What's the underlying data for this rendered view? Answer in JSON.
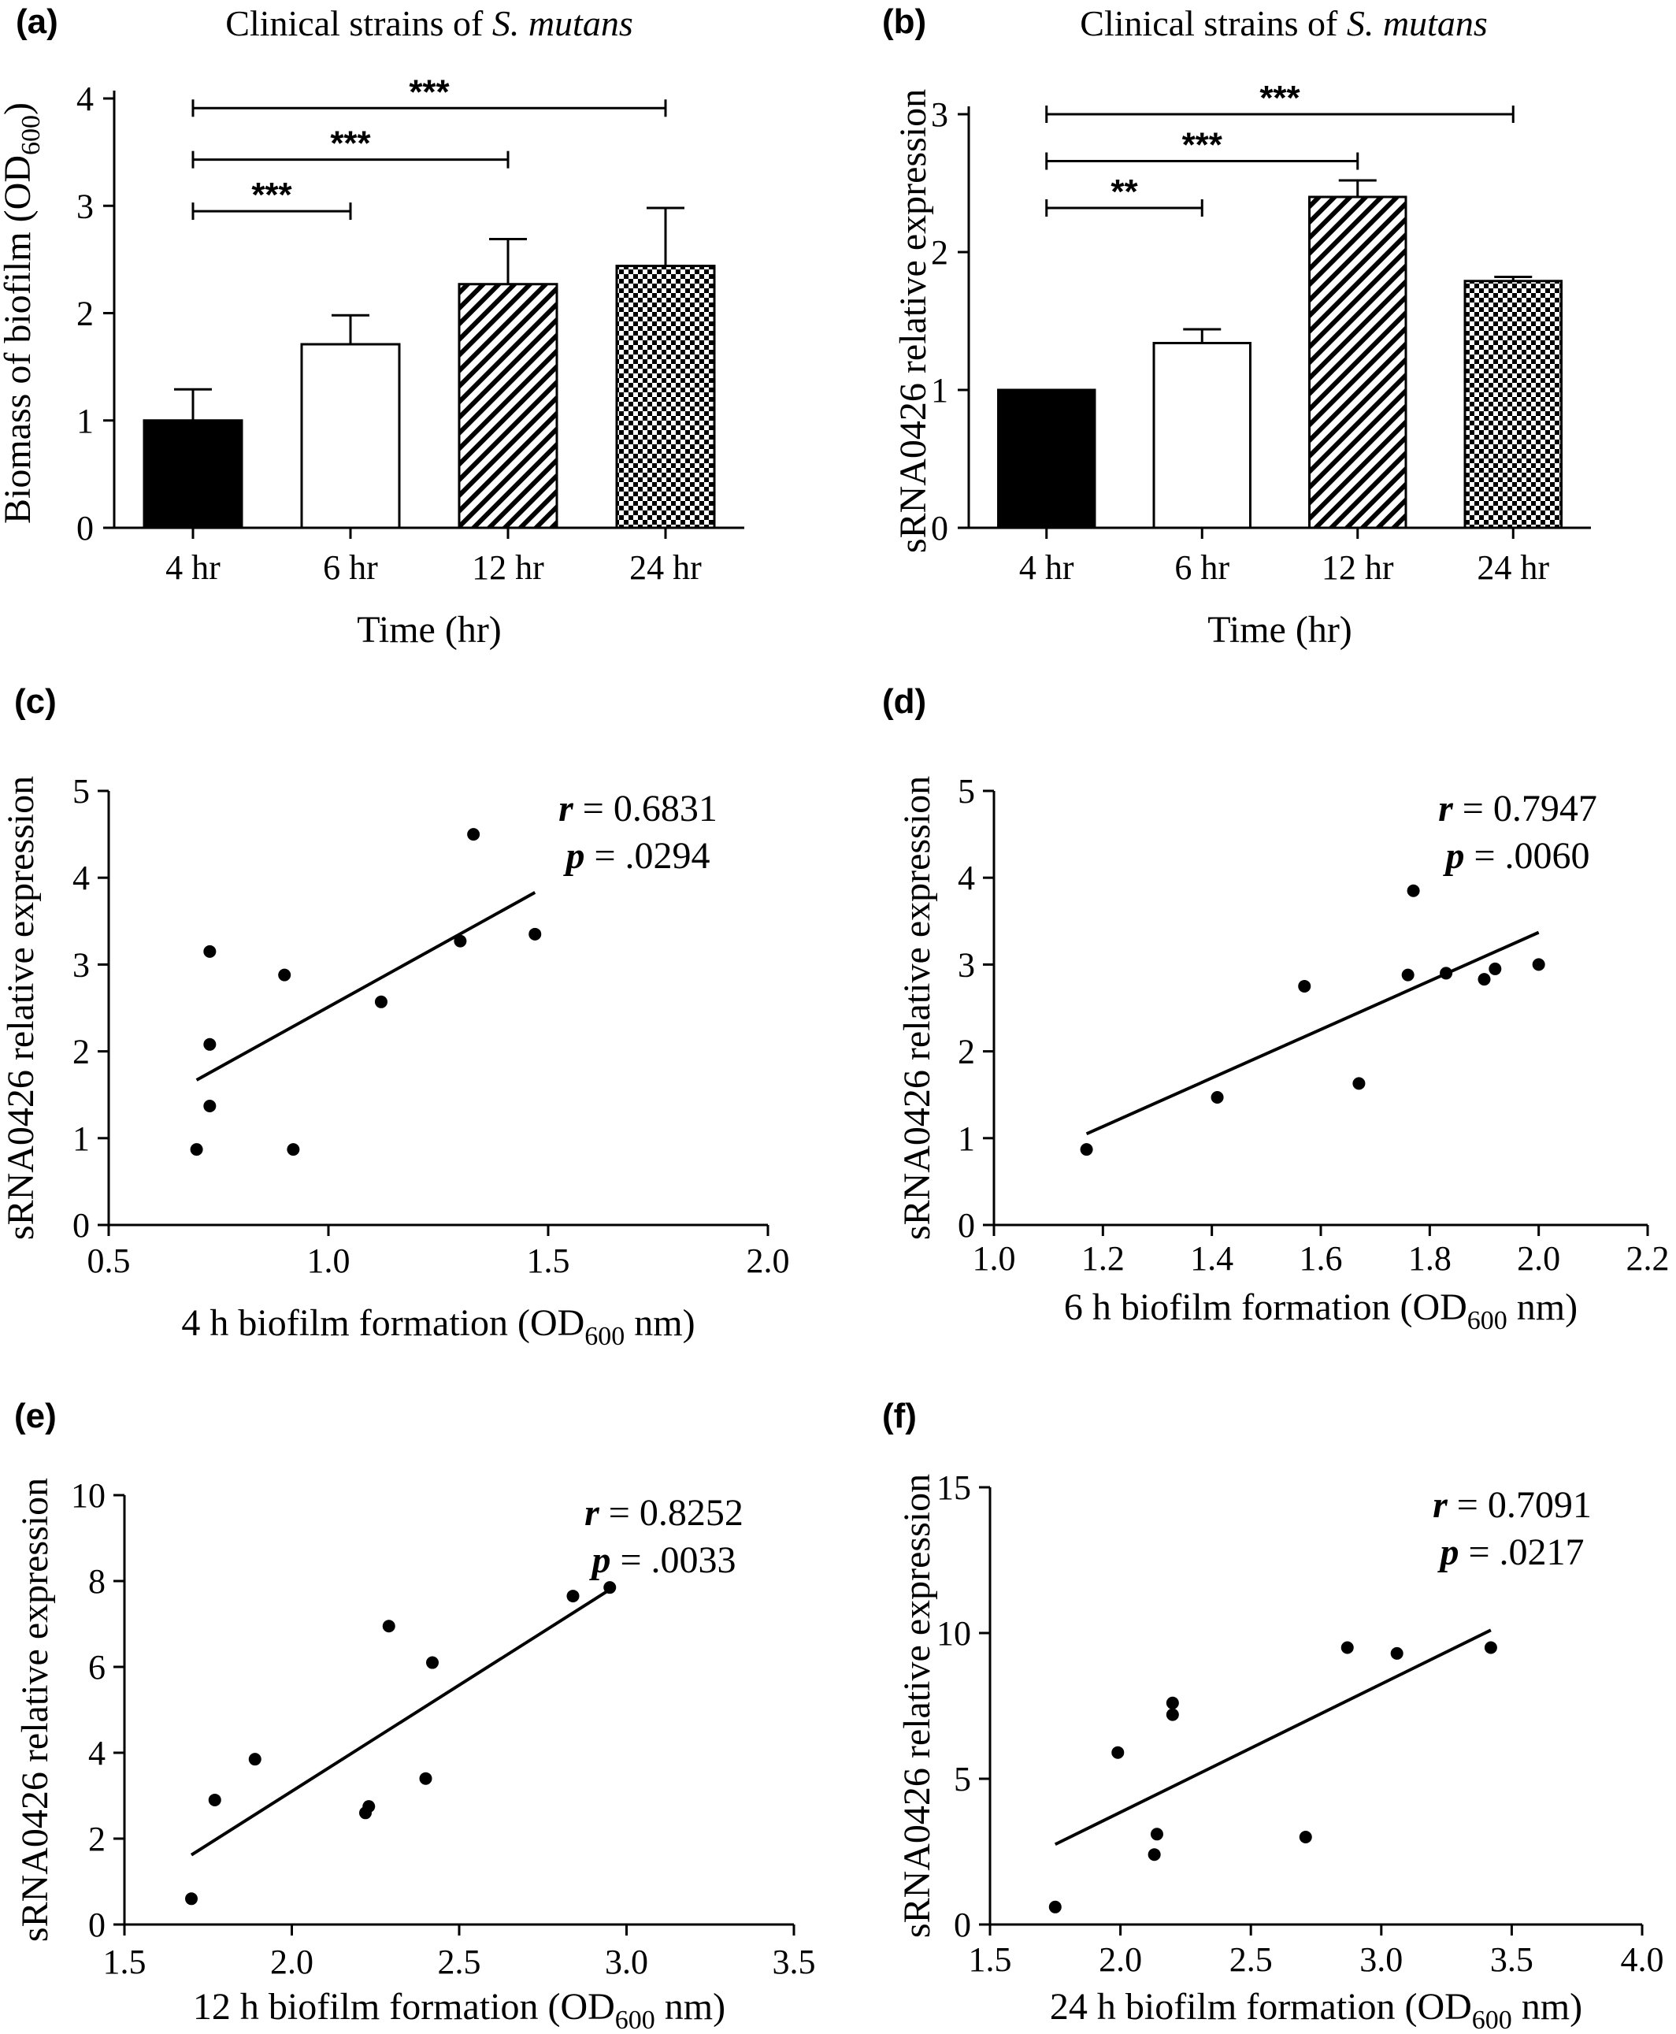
{
  "chart_data": [
    {
      "id": "a",
      "type": "bar",
      "panel_label": "(a)",
      "title": "Clinical strains of",
      "title_species": "S. mutans",
      "categories": [
        "4 hr",
        "6 hr",
        "12 hr",
        "24 hr"
      ],
      "values": [
        1.0,
        1.71,
        2.27,
        2.44
      ],
      "errors": [
        0.29,
        0.27,
        0.42,
        0.54
      ],
      "patterns": [
        "solid",
        "empty",
        "diagonal",
        "checker"
      ],
      "xlabel": "Time (hr)",
      "ylabel_main": "Biomass of biofilm (OD",
      "ylabel_sub": "600",
      "ylabel_tail": ")",
      "ylim": [
        0,
        4
      ],
      "yticks": [
        0,
        1,
        2,
        3,
        4
      ],
      "brackets": [
        {
          "from": 0,
          "to": 1,
          "y": 2.95,
          "label": "***"
        },
        {
          "from": 0,
          "to": 2,
          "y": 3.43,
          "label": "***"
        },
        {
          "from": 0,
          "to": 3,
          "y": 3.91,
          "label": "***"
        }
      ]
    },
    {
      "id": "b",
      "type": "bar",
      "panel_label": "(b)",
      "title": "Clinical strains of",
      "title_species": "S. mutans",
      "categories": [
        "4 hr",
        "6 hr",
        "12 hr",
        "24 hr"
      ],
      "values": [
        1.0,
        1.34,
        2.4,
        1.79
      ],
      "errors": [
        0.0,
        0.1,
        0.12,
        0.03
      ],
      "patterns": [
        "solid",
        "empty",
        "diagonal",
        "checker"
      ],
      "xlabel": "Time (hr)",
      "ylabel_main": "sRNA0426 relative expression",
      "ylabel_sub": "",
      "ylabel_tail": "",
      "ylim": [
        0,
        3
      ],
      "yticks": [
        0,
        1,
        2,
        3
      ],
      "brackets": [
        {
          "from": 0,
          "to": 1,
          "y": 2.32,
          "label": "**"
        },
        {
          "from": 0,
          "to": 2,
          "y": 2.66,
          "label": "***"
        },
        {
          "from": 0,
          "to": 3,
          "y": 3.0,
          "label": "***"
        }
      ]
    },
    {
      "id": "c",
      "type": "scatter",
      "panel_label": "(c)",
      "x": [
        0.7,
        0.73,
        0.73,
        0.73,
        0.9,
        0.92,
        1.12,
        1.3,
        1.33,
        1.47
      ],
      "y": [
        0.87,
        3.15,
        2.08,
        1.37,
        2.88,
        0.87,
        2.57,
        3.27,
        4.5,
        3.35
      ],
      "fit": {
        "x": [
          0.7,
          1.47
        ],
        "y": [
          1.67,
          3.83
        ]
      },
      "r_label": "r",
      "r_value": "= 0.6831",
      "p_label": "p",
      "p_value": "= .0294",
      "xlabel_main": "4 h biofilm formation (OD",
      "xlabel_sub": "600",
      "xlabel_tail": " nm)",
      "ylabel": "sRNA0426 relative expression",
      "xlim": [
        0.5,
        2.0
      ],
      "ylim": [
        0,
        5
      ],
      "xticks": [
        "0.5",
        "1.0",
        "1.5",
        "2.0"
      ],
      "yticks": [
        "0",
        "1",
        "2",
        "3",
        "4",
        "5"
      ]
    },
    {
      "id": "d",
      "type": "scatter",
      "panel_label": "(d)",
      "x": [
        1.17,
        1.41,
        1.57,
        1.67,
        1.76,
        1.77,
        1.83,
        1.9,
        1.92,
        2.0
      ],
      "y": [
        0.87,
        1.47,
        2.75,
        1.63,
        2.88,
        3.85,
        2.9,
        2.83,
        2.95,
        3.0
      ],
      "fit": {
        "x": [
          1.17,
          2.0
        ],
        "y": [
          1.05,
          3.37
        ]
      },
      "r_label": "r",
      "r_value": "= 0.7947",
      "p_label": "p",
      "p_value": "= .0060",
      "xlabel_main": "6 h biofilm formation (OD",
      "xlabel_sub": "600",
      "xlabel_tail": " nm)",
      "ylabel": "sRNA0426 relative expression",
      "xlim": [
        1.0,
        2.2
      ],
      "ylim": [
        0,
        5
      ],
      "xticks": [
        "1.0",
        "1.2",
        "1.4",
        "1.6",
        "1.8",
        "2.0",
        "2.2"
      ],
      "yticks": [
        "0",
        "1",
        "2",
        "3",
        "4",
        "5"
      ]
    },
    {
      "id": "e",
      "type": "scatter",
      "panel_label": "(e)",
      "x": [
        1.7,
        1.77,
        1.89,
        2.22,
        2.23,
        2.29,
        2.4,
        2.42,
        2.84,
        2.95
      ],
      "y": [
        0.6,
        2.9,
        3.85,
        2.6,
        2.75,
        6.95,
        3.4,
        6.1,
        7.65,
        7.85
      ],
      "fit": {
        "x": [
          1.7,
          2.95
        ],
        "y": [
          1.62,
          7.8
        ]
      },
      "r_label": "r",
      "r_value": "= 0.8252",
      "p_label": "p",
      "p_value": "= .0033",
      "xlabel_main": "12 h biofilm formation (OD",
      "xlabel_sub": "600",
      "xlabel_tail": " nm)",
      "ylabel": "sRNA0426 relative expression",
      "xlim": [
        1.5,
        3.5
      ],
      "ylim": [
        0,
        10
      ],
      "xticks": [
        "1.5",
        "2.0",
        "2.5",
        "3.0",
        "3.5"
      ],
      "yticks": [
        "0",
        "2",
        "4",
        "6",
        "8",
        "10"
      ]
    },
    {
      "id": "f",
      "type": "scatter",
      "panel_label": "(f)",
      "x": [
        1.75,
        1.99,
        2.13,
        2.14,
        2.2,
        2.2,
        2.71,
        2.87,
        3.06,
        3.42
      ],
      "y": [
        0.6,
        5.9,
        2.4,
        3.1,
        7.6,
        7.2,
        3.0,
        9.5,
        9.3,
        9.5
      ],
      "fit": {
        "x": [
          1.75,
          3.42
        ],
        "y": [
          2.75,
          10.1
        ]
      },
      "r_label": "r",
      "r_value": "= 0.7091",
      "p_label": "p",
      "p_value": "= .0217",
      "xlabel_main": "24 h biofilm formation (OD",
      "xlabel_sub": "600",
      "xlabel_tail": " nm)",
      "ylabel": "sRNA0426 relative expression",
      "xlim": [
        1.5,
        4.0
      ],
      "ylim": [
        0,
        15
      ],
      "xticks": [
        "1.5",
        "2.0",
        "2.5",
        "3.0",
        "3.5",
        "4.0"
      ],
      "yticks": [
        "0",
        "5",
        "10",
        "15"
      ]
    }
  ]
}
